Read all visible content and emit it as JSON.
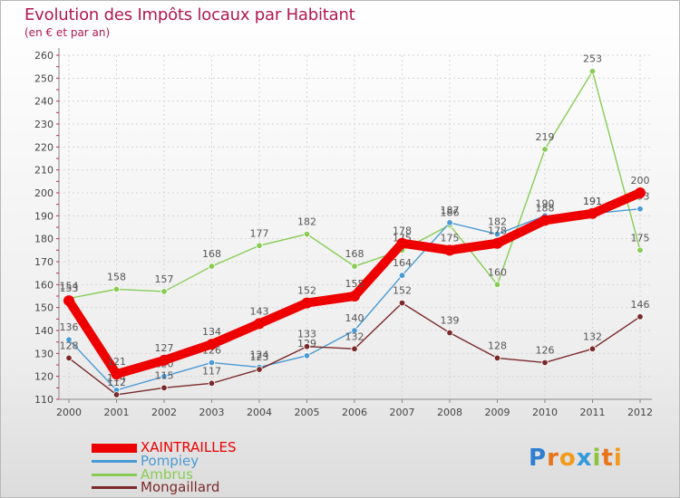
{
  "header": {
    "title": "Evolution des Impôts locaux par Habitant",
    "subtitle": "(en € et par an)"
  },
  "chart_data": {
    "type": "line",
    "title": "Evolution des Impôts locaux par Habitant",
    "subtitle": "(en € et par an)",
    "xlabel": "",
    "ylabel": "",
    "ylim": [
      110,
      260
    ],
    "yticks": [
      110,
      120,
      130,
      140,
      150,
      160,
      170,
      180,
      190,
      200,
      210,
      220,
      230,
      240,
      250,
      260
    ],
    "categories": [
      "2000",
      "2001",
      "2002",
      "2003",
      "2004",
      "2005",
      "2006",
      "2007",
      "2008",
      "2009",
      "2010",
      "2011",
      "2012"
    ],
    "series": [
      {
        "name": "Ambrus",
        "color": "#88cc55",
        "values": [
          154,
          158,
          157,
          168,
          177,
          182,
          168,
          175,
          186,
          160,
          219,
          253,
          175
        ]
      },
      {
        "name": "Pompiey",
        "color": "#4a9ad4",
        "values": [
          136,
          114,
          120,
          126,
          124,
          129,
          140,
          164,
          187,
          182,
          190,
          191,
          193
        ]
      },
      {
        "name": "Mongaillard",
        "color": "#7a2a2a",
        "values": [
          128,
          112,
          115,
          117,
          123,
          133,
          132,
          152,
          139,
          128,
          126,
          132,
          146
        ]
      },
      {
        "name": "XAINTRAILLES",
        "color": "#ee0000",
        "values": [
          153,
          121,
          127,
          134,
          143,
          152,
          155,
          178,
          175,
          178,
          188,
          191,
          200
        ]
      }
    ],
    "legend_position": "bottom-left",
    "grid": true
  },
  "legend": [
    {
      "label": "XAINTRAILLES",
      "color": "#ee0000"
    },
    {
      "label": "Pompiey",
      "color": "#4a9ad4"
    },
    {
      "label": "Ambrus",
      "color": "#88cc55"
    },
    {
      "label": "Mongaillard",
      "color": "#7a2a2a"
    }
  ],
  "logo": {
    "text": "Proxiti",
    "letters": [
      "P",
      "r",
      "o",
      "x",
      "i",
      "t",
      "i"
    ],
    "colors": [
      "#2f7fd0",
      "#e8731a",
      "#f29a1a",
      "#3399dd",
      "#8cc43c",
      "#e8731a",
      "#f29a1a"
    ]
  }
}
